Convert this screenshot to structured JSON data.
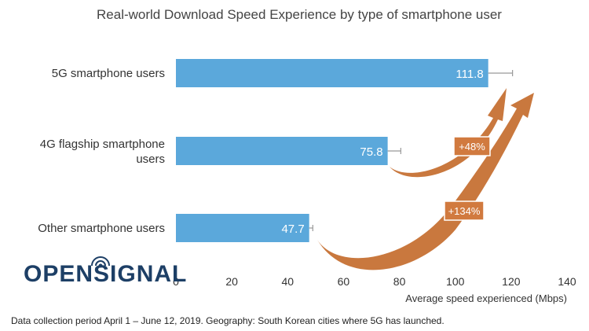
{
  "chart_data": {
    "type": "bar",
    "orientation": "horizontal",
    "title": "Real-world Download Speed Experience by type of smartphone user",
    "categories": [
      "5G smartphone users",
      "4G flagship smartphone users",
      "Other smartphone users"
    ],
    "values": [
      111.8,
      75.8,
      47.7
    ],
    "error_upper": [
      120.5,
      80.5,
      49.0
    ],
    "value_labels": [
      "111.8",
      "75.8",
      "47.7"
    ],
    "xlabel": "Average speed experienced (Mbps)",
    "xlim": [
      0,
      140
    ],
    "xticks": [
      "0",
      "20",
      "40",
      "60",
      "80",
      "100",
      "120",
      "140"
    ],
    "grid": false,
    "annotations": [
      {
        "from": "4G flagship smartphone users",
        "to": "5G smartphone users",
        "text": "+48%"
      },
      {
        "from": "Other smartphone users",
        "to": "5G smartphone users",
        "text": "+134%"
      }
    ]
  },
  "footnote": "Data collection period April 1 – June 12, 2019. Geography: South Korean cities where 5G has launched.",
  "logo": "OPENSIGNAL",
  "colors": {
    "bar": "#5ba8db",
    "arrow": "#c9783e",
    "annotation_box": "#d17a3f",
    "error_bar": "#999999",
    "logo": "#1d3f66"
  }
}
